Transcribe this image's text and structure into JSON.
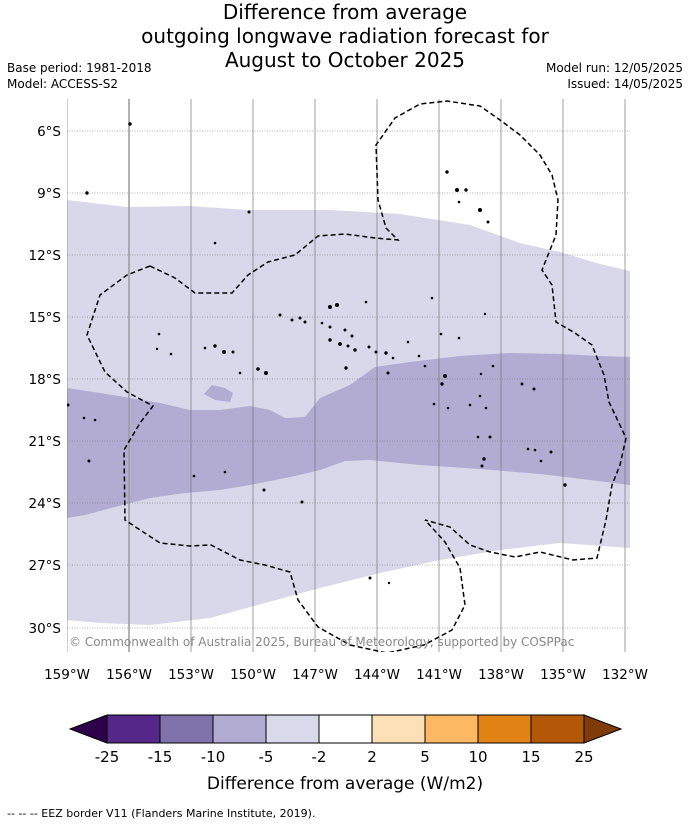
{
  "title": {
    "line1": "Difference from average",
    "line2": "outgoing longwave radiation forecast for",
    "line3": "August to October 2025"
  },
  "meta": {
    "base_period": "Base period: 1981-2018",
    "model": "Model: ACCESS-S2",
    "model_run": "Model run: 12/05/2025",
    "issued": "Issued: 14/05/2025"
  },
  "map": {
    "lat_labels": [
      "6°S",
      "9°S",
      "12°S",
      "15°S",
      "18°S",
      "21°S",
      "24°S",
      "27°S",
      "30°S"
    ],
    "lon_labels": [
      "159°W",
      "156°W",
      "153°W",
      "150°W",
      "147°W",
      "144°W",
      "141°W",
      "138°W",
      "135°W",
      "132°W"
    ],
    "copyright": "© Commonwealth of Australia 2025, Bureau of Meteorology, supported by COSPPac",
    "colors": {
      "light_purple": "#d8d8ea",
      "mid_purple": "#b2abd2",
      "grid": "#555555"
    }
  },
  "colorbar": {
    "title": "Difference from average (W/m2)",
    "tick_labels": [
      "-25",
      "-15",
      "-10",
      "-5",
      "-2",
      "2",
      "5",
      "10",
      "15",
      "25"
    ],
    "colors": [
      "#2d004b",
      "#542788",
      "#8073ac",
      "#b2abd2",
      "#d8daeb",
      "#ffffff",
      "#fee0b6",
      "#fdb863",
      "#e08214",
      "#b35806",
      "#7f3b08"
    ]
  },
  "footer": "--  --  -- EEZ border V11 (Flanders Marine Institute, 2019)."
}
